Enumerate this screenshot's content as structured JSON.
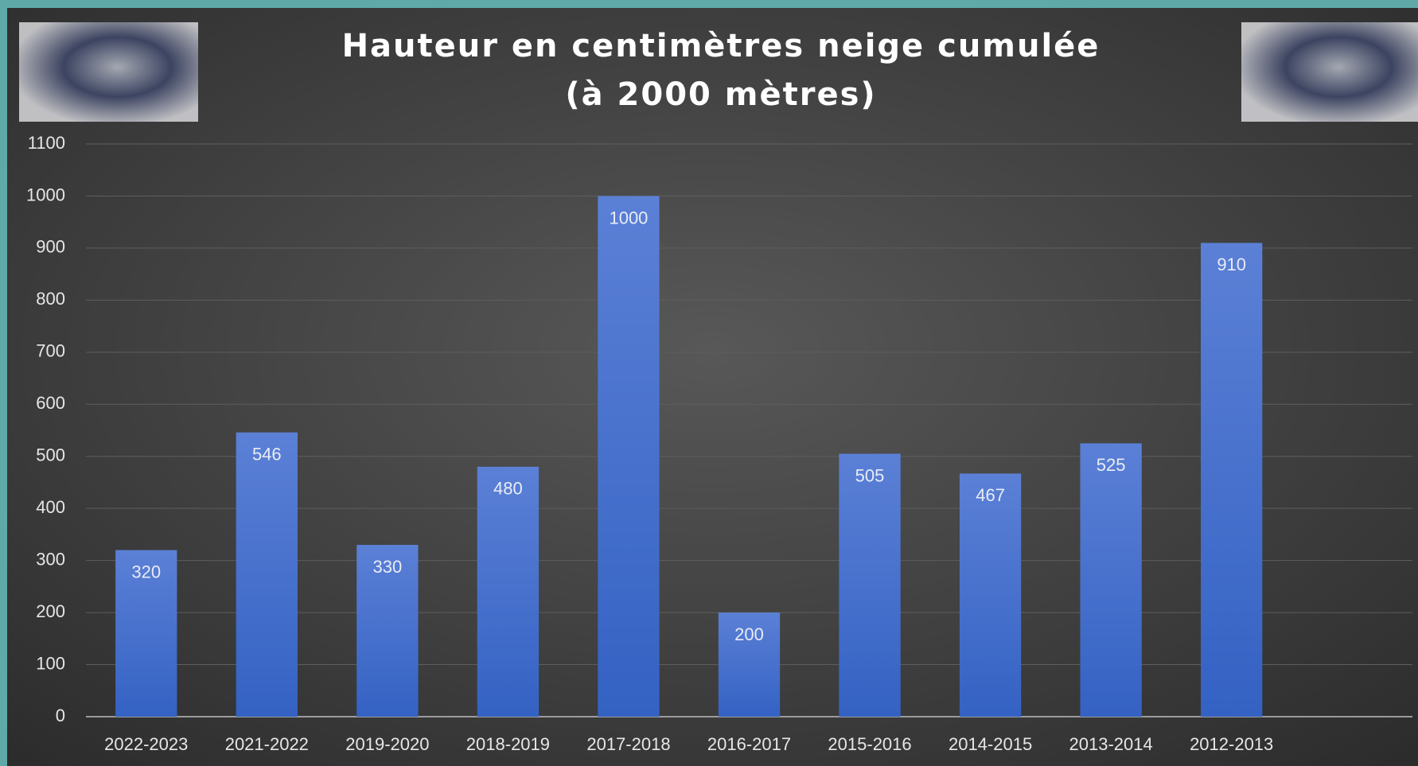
{
  "chart_data": {
    "type": "bar",
    "title": [
      "Hauteur en centimètres neige cumulée",
      "(à 2000 mètres)"
    ],
    "categories": [
      "2022-2023",
      "2021-2022",
      "2019-2020",
      "2018-2019",
      "2017-2018",
      "2016-2017",
      "2015-2016",
      "2014-2015",
      "2013-2014",
      "2012-2013",
      null
    ],
    "values": [
      320,
      546,
      330,
      480,
      1000,
      200,
      505,
      467,
      525,
      910,
      null
    ],
    "color": "#4a70cc",
    "ylim": [
      0,
      1100
    ],
    "yticks": [
      0,
      100,
      200,
      300,
      400,
      500,
      600,
      700,
      800,
      900,
      1000,
      1100
    ],
    "grid": true
  }
}
